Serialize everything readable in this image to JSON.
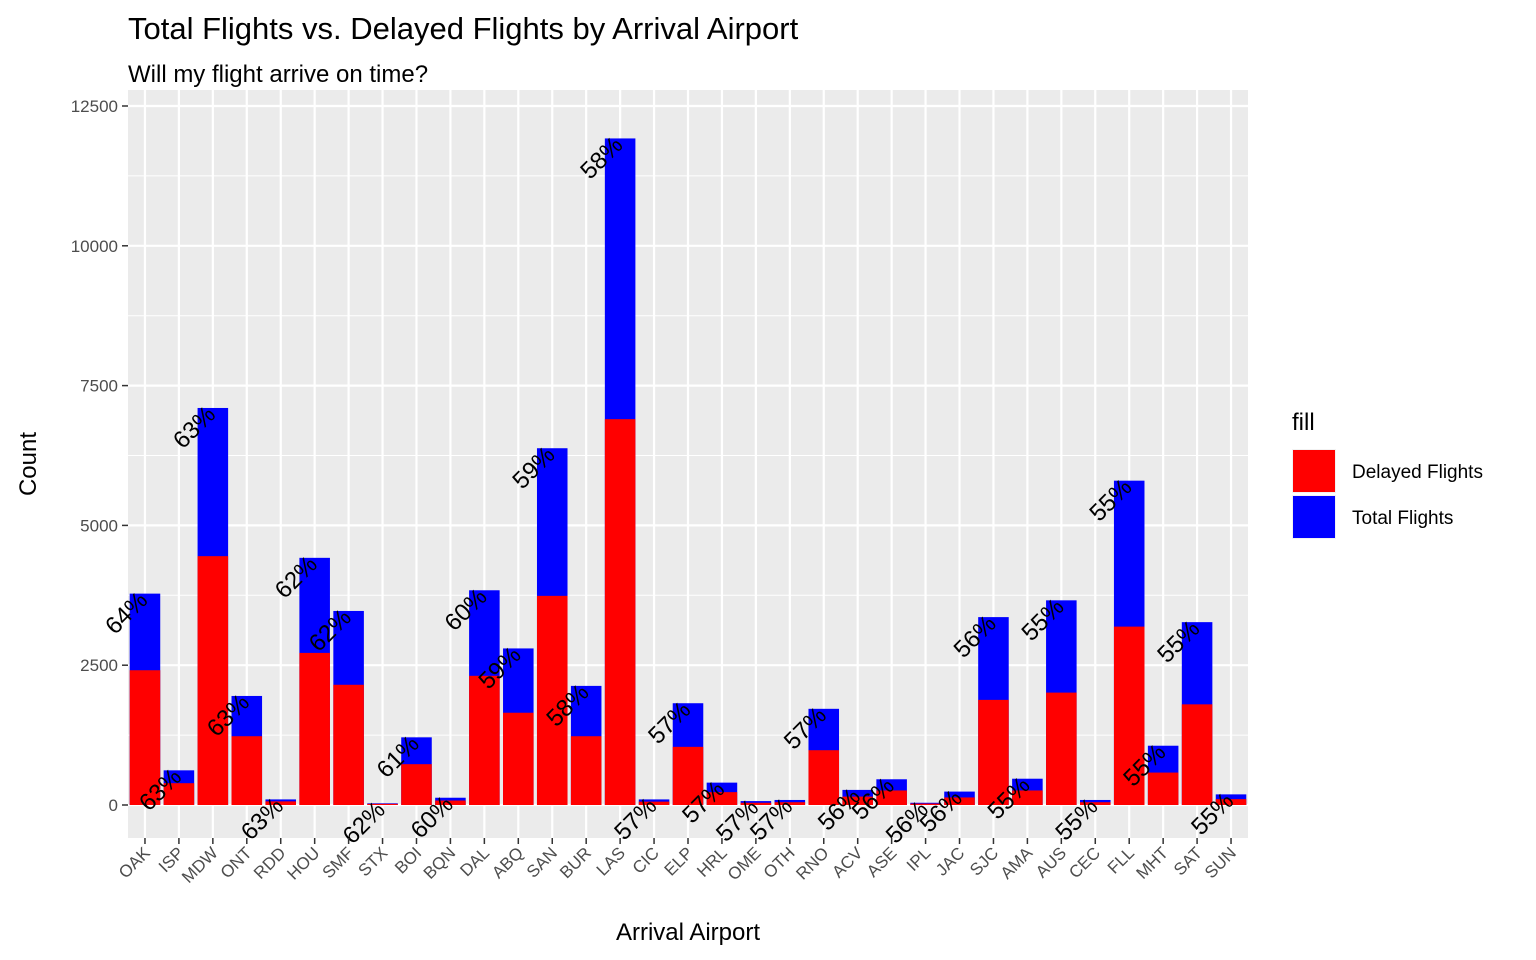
{
  "title": "Total Flights vs. Delayed Flights by Arrival Airport",
  "subtitle": "Will my flight arrive on time?",
  "colors": {
    "panel": "#EBEBEB",
    "grid": "#FFFFFF",
    "delayed": "#FF0000",
    "total": "#0000FF"
  },
  "chart_data": {
    "type": "bar",
    "stacking": "overlay",
    "title": "Total Flights vs. Delayed Flights by Arrival Airport",
    "subtitle": "Will my flight arrive on time?",
    "xlabel": "Arrival Airport",
    "ylabel": "Count",
    "ylim": [
      -600,
      12500
    ],
    "yticks": [
      0,
      2500,
      5000,
      7500,
      10000,
      12500
    ],
    "grid": true,
    "legend": {
      "title": "fill",
      "position": "right",
      "entries": [
        {
          "label": "Delayed Flights",
          "color": "#FF0000"
        },
        {
          "label": "Total Flights",
          "color": "#0000FF"
        }
      ]
    },
    "categories": [
      "OAK",
      "ISP",
      "MDW",
      "ONT",
      "RDD",
      "HOU",
      "SMF",
      "STX",
      "BOI",
      "BQN",
      "DAL",
      "ABQ",
      "SAN",
      "BUR",
      "LAS",
      "CIC",
      "ELP",
      "HRL",
      "OME",
      "OTH",
      "RNO",
      "ACV",
      "ASE",
      "IPL",
      "JAC",
      "SJC",
      "AMA",
      "AUS",
      "CEC",
      "FLL",
      "MHT",
      "SAT",
      "SUN"
    ],
    "series": [
      {
        "name": "Total Flights",
        "color": "#0000FF",
        "values": [
          3780,
          620,
          7100,
          1950,
          100,
          4420,
          3470,
          30,
          1210,
          130,
          3840,
          2800,
          6380,
          2130,
          11920,
          100,
          1820,
          400,
          70,
          90,
          1720,
          270,
          460,
          40,
          240,
          3360,
          470,
          3660,
          90,
          5800,
          1060,
          3270,
          190
        ]
      },
      {
        "name": "Delayed Flights",
        "color": "#FF0000",
        "values": [
          2410,
          390,
          4450,
          1230,
          65,
          2720,
          2150,
          20,
          730,
          80,
          2310,
          1650,
          3740,
          1230,
          6900,
          60,
          1040,
          230,
          40,
          50,
          980,
          150,
          260,
          25,
          135,
          1880,
          260,
          2010,
          50,
          3190,
          580,
          1800,
          105
        ]
      }
    ],
    "data_labels": [
      "64%",
      "63%",
      "63%",
      "63%",
      "63%",
      "62%",
      "62%",
      "62%",
      "61%",
      "60%",
      "60%",
      "59%",
      "59%",
      "58%",
      "58%",
      "57%",
      "57%",
      "57%",
      "57%",
      "57%",
      "57%",
      "56%",
      "56%",
      "56%",
      "56%",
      "56%",
      "55%",
      "55%",
      "55%",
      "55%",
      "55%",
      "55%",
      "55%"
    ]
  }
}
